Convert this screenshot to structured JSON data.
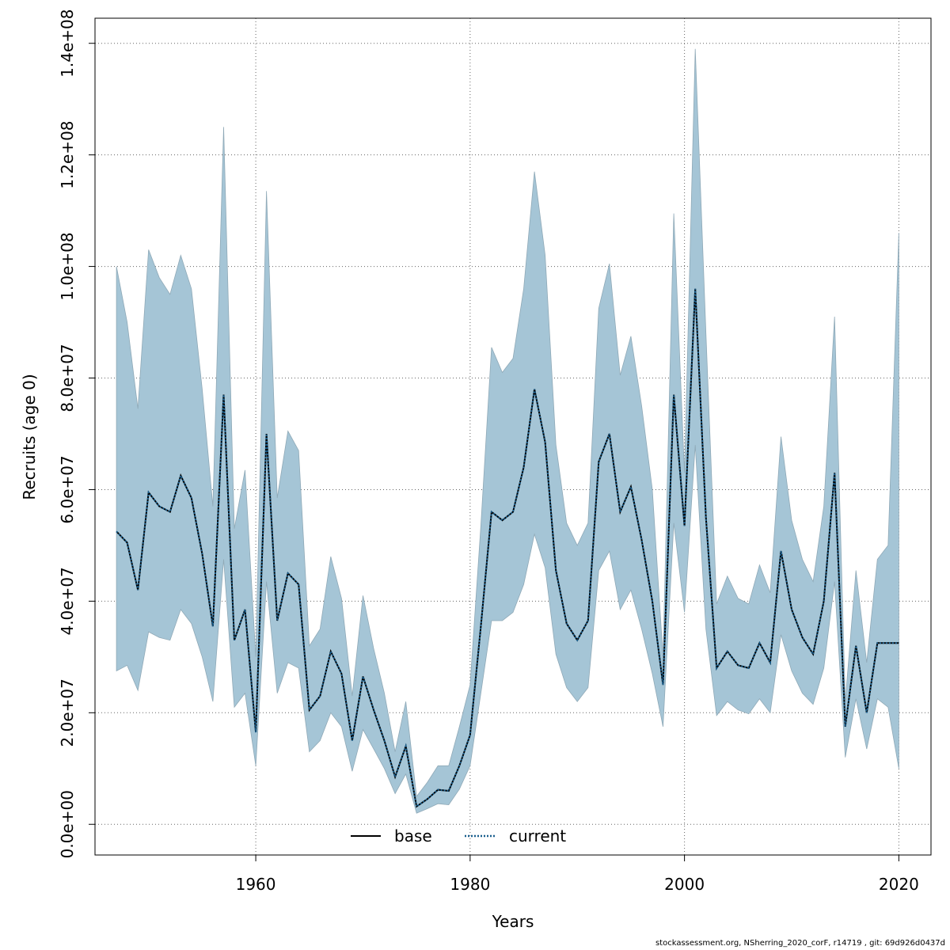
{
  "chart_data": {
    "type": "area",
    "xlabel": "Years",
    "ylabel": "Recruits (age 0)",
    "xlim": [
      1945,
      2023
    ],
    "ylim": [
      -5500000,
      144500000
    ],
    "x_ticks": [
      1960,
      1980,
      2000,
      2020
    ],
    "y_ticks": [
      0,
      20000000,
      40000000,
      60000000,
      80000000,
      100000000,
      120000000,
      140000000
    ],
    "y_tick_labels": [
      "0.0e+00",
      "2.0e+07",
      "4.0e+07",
      "6.0e+07",
      "8.0e+07",
      "1.0e+08",
      "1.2e+08",
      "1.4e+08"
    ],
    "x_tick_labels": [
      "1960",
      "1980",
      "2000",
      "2020"
    ],
    "grid": true,
    "legend_position": "bottom-center",
    "colors": {
      "band": "#a5c5d6",
      "band_edge": "#8fa9b7",
      "base": "#000000",
      "current": "#1a5f8e"
    },
    "x": [
      1947,
      1948,
      1949,
      1950,
      1951,
      1952,
      1953,
      1954,
      1955,
      1956,
      1957,
      1958,
      1959,
      1960,
      1961,
      1962,
      1963,
      1964,
      1965,
      1966,
      1967,
      1968,
      1969,
      1970,
      1971,
      1972,
      1973,
      1974,
      1975,
      1976,
      1977,
      1978,
      1979,
      1980,
      1981,
      1982,
      1983,
      1984,
      1985,
      1986,
      1987,
      1988,
      1989,
      1990,
      1991,
      1992,
      1993,
      1994,
      1995,
      1996,
      1997,
      1998,
      1999,
      2000,
      2001,
      2002,
      2003,
      2004,
      2005,
      2006,
      2007,
      2008,
      2009,
      2010,
      2011,
      2012,
      2013,
      2014,
      2015,
      2016,
      2017,
      2018,
      2019,
      2020
    ],
    "upper": [
      100000000,
      90000000,
      74500000,
      103000000,
      98000000,
      95000000,
      102000000,
      96000000,
      78000000,
      57000000,
      125000000,
      53000000,
      63500000,
      30000000,
      113500000,
      58500000,
      70500000,
      67000000,
      32000000,
      35000000,
      48000000,
      40500000,
      23000000,
      41000000,
      31500000,
      23500000,
      13000000,
      22000000,
      5000000,
      7500000,
      10500000,
      10500000,
      17500000,
      25000000,
      53500000,
      85500000,
      81000000,
      83500000,
      96000000,
      117000000,
      102000000,
      68000000,
      54000000,
      50000000,
      54000000,
      92500000,
      100500000,
      80500000,
      87500000,
      75000000,
      60000000,
      30000000,
      109500000,
      63000000,
      139000000,
      88000000,
      39500000,
      44500000,
      40500000,
      39500000,
      46500000,
      41500000,
      69500000,
      54500000,
      47500000,
      43500000,
      57000000,
      91000000,
      22000000,
      45500000,
      29000000,
      47500000,
      50000000,
      106000000
    ],
    "lower": [
      27500000,
      28500000,
      24000000,
      34500000,
      33500000,
      33000000,
      38500000,
      36000000,
      30000000,
      22000000,
      47500000,
      21000000,
      23500000,
      10500000,
      43500000,
      23500000,
      29000000,
      28000000,
      13000000,
      15000000,
      20000000,
      17500000,
      9500000,
      17000000,
      13500000,
      10000000,
      5500000,
      9000000,
      2000000,
      2800000,
      3700000,
      3500000,
      6300000,
      10500000,
      23500000,
      36500000,
      36500000,
      38000000,
      43000000,
      52000000,
      46000000,
      30500000,
      24500000,
      22000000,
      24500000,
      45500000,
      49000000,
      38500000,
      42000000,
      35000000,
      27000000,
      17500000,
      54000000,
      38000000,
      68000000,
      35000000,
      19500000,
      22000000,
      20500000,
      19800000,
      22500000,
      20000000,
      34000000,
      27500000,
      23500000,
      21500000,
      28000000,
      43500000,
      12000000,
      22500000,
      13500000,
      22500000,
      21000000,
      10000000
    ],
    "series": [
      {
        "name": "base",
        "line_style": "solid",
        "values": [
          52500000,
          50500000,
          42000000,
          59500000,
          57000000,
          56000000,
          62500000,
          58500000,
          48500000,
          35500000,
          77000000,
          33000000,
          38500000,
          16500000,
          70000000,
          36500000,
          45000000,
          43000000,
          20500000,
          23000000,
          31000000,
          27000000,
          15000000,
          26500000,
          20500000,
          15000000,
          8500000,
          14000000,
          3200000,
          4500000,
          6200000,
          6000000,
          10500000,
          16000000,
          35500000,
          56000000,
          54500000,
          56000000,
          64000000,
          78000000,
          68500000,
          45500000,
          36000000,
          33000000,
          36500000,
          65000000,
          70000000,
          56000000,
          60500000,
          51000000,
          40000000,
          25000000,
          77000000,
          53500000,
          96000000,
          55000000,
          28000000,
          31000000,
          28500000,
          28000000,
          32500000,
          29000000,
          49000000,
          38500000,
          33500000,
          30500000,
          40000000,
          63000000,
          17500000,
          32000000,
          20000000,
          32500000,
          32500000,
          32500000
        ]
      },
      {
        "name": "current",
        "line_style": "dotted",
        "values": [
          52500000,
          50500000,
          42000000,
          59500000,
          57000000,
          56000000,
          62500000,
          58500000,
          48500000,
          35500000,
          77000000,
          33000000,
          38500000,
          16500000,
          70000000,
          36500000,
          45000000,
          43000000,
          20500000,
          23000000,
          31000000,
          27000000,
          15000000,
          26500000,
          20500000,
          15000000,
          8500000,
          14000000,
          3200000,
          4500000,
          6200000,
          6000000,
          10500000,
          16000000,
          35500000,
          56000000,
          54500000,
          56000000,
          64000000,
          78000000,
          68500000,
          45500000,
          36000000,
          33000000,
          36500000,
          65000000,
          70000000,
          56000000,
          60500000,
          51000000,
          40000000,
          25000000,
          77000000,
          53500000,
          96000000,
          55000000,
          28000000,
          31000000,
          28500000,
          28000000,
          32500000,
          29000000,
          49000000,
          38500000,
          33500000,
          30500000,
          40000000,
          63000000,
          17500000,
          32000000,
          20000000,
          32500000,
          32500000,
          32500000
        ]
      }
    ]
  },
  "footer": "stockassessment.org, NSherring_2020_corF, r14719 , git: 69d926d0437d"
}
